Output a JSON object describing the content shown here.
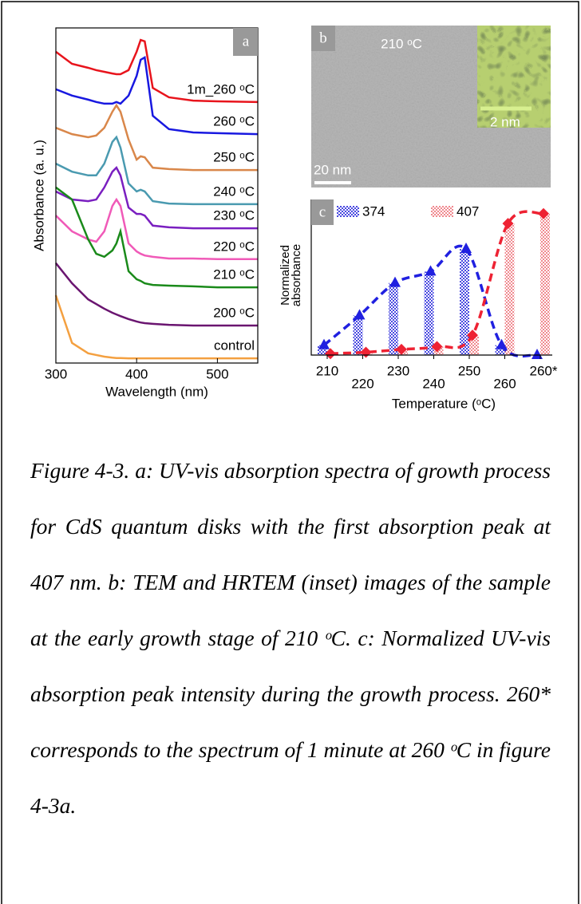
{
  "chart_data": [
    {
      "type": "line",
      "panel_label": "a",
      "xlabel": "Wavelength (nm)",
      "ylabel": "Absorbance (a. u.)",
      "x": [
        300,
        320,
        340,
        350,
        360,
        370,
        375,
        380,
        390,
        400,
        405,
        410,
        420,
        440,
        470,
        500,
        550
      ],
      "xlim": [
        300,
        550
      ],
      "xticks": [
        300,
        400,
        500
      ],
      "ylim": [
        0,
        100
      ],
      "series": [
        {
          "name": "1m_260 ᵒC",
          "color": "#e8141c",
          "values": [
            92.9,
            89.3,
            88.1,
            87.4,
            86.9,
            86.4,
            86.2,
            86.2,
            87.4,
            92.9,
            96.4,
            96,
            82.1,
            79.3,
            78.3,
            78.1,
            77.9
          ]
        },
        {
          "name": "260 ᵒC",
          "color": "#1818e0",
          "values": [
            81.7,
            79.8,
            78.6,
            77.9,
            77.4,
            77.4,
            77.9,
            77.4,
            79.8,
            85.7,
            90.5,
            91.2,
            73.8,
            69.8,
            68.8,
            68.6,
            68.3
          ]
        },
        {
          "name": "250 ᵒC",
          "color": "#d9874a",
          "values": [
            70.2,
            68.3,
            67.4,
            67.9,
            70.2,
            75,
            76.9,
            75,
            66.7,
            60.7,
            61.7,
            61.4,
            58.3,
            57.9,
            57.6,
            57.6,
            57.6
          ]
        },
        {
          "name": "240 ᵒC",
          "color": "#4a9ab0",
          "values": [
            59.5,
            57.1,
            56,
            56,
            59.5,
            66,
            67.4,
            64.3,
            53.6,
            51.2,
            51.7,
            51.2,
            48.3,
            47.6,
            47.4,
            47.4,
            47.4
          ]
        },
        {
          "name": "230 ᵒC",
          "color": "#7a1fc0",
          "values": [
            51.2,
            48.8,
            48.3,
            48.8,
            52.4,
            57.1,
            58.3,
            56,
            46.4,
            44.5,
            44.5,
            44,
            41,
            40.5,
            40.2,
            40.2,
            40.2
          ]
        },
        {
          "name": "220 ᵒC",
          "color": "#f05ab8",
          "values": [
            44,
            39.3,
            36.9,
            36.2,
            39.3,
            46.9,
            48.8,
            46.9,
            35.7,
            33.3,
            32.6,
            32.1,
            31.7,
            31.2,
            31.2,
            31,
            31
          ]
        },
        {
          "name": "210 ᵒC",
          "color": "#1a8a1a",
          "values": [
            52.4,
            48.8,
            36.9,
            32.6,
            31.7,
            33.6,
            35.7,
            39.3,
            27.4,
            25,
            24.5,
            23.8,
            23.3,
            23.1,
            22.9,
            22.6,
            22.6
          ]
        },
        {
          "name": "200 ᵒC",
          "color": "#6a1570",
          "values": [
            29.8,
            23.8,
            19,
            17.6,
            16.2,
            15,
            14.5,
            14,
            13.1,
            12.4,
            12.1,
            11.9,
            11.7,
            11.4,
            11.2,
            11.2,
            11.2
          ]
        },
        {
          "name": "control",
          "color": "#f4a040",
          "values": [
            20.2,
            6,
            2.9,
            2.4,
            1.9,
            1.6,
            1.5,
            1.5,
            1.4,
            1.4,
            1.4,
            1.4,
            1.4,
            1.4,
            1.4,
            1.4,
            1.4
          ]
        }
      ]
    },
    {
      "type": "bar_line",
      "panel_label": "c",
      "xlabel": "Temperature (ᵒC)",
      "ylabel_lines": [
        "Normalized",
        "absorbance"
      ],
      "categories": [
        "210",
        "220",
        "230",
        "240",
        "250",
        "260",
        "260*"
      ],
      "ylim": [
        0,
        1.1
      ],
      "legend": "top",
      "series": [
        {
          "name": "374",
          "color": "#2020e0",
          "values": [
            0.07,
            0.28,
            0.51,
            0.59,
            0.75,
            0.07,
            0
          ]
        },
        {
          "name": "407",
          "color": "#ee2233",
          "values": [
            0.01,
            0.02,
            0.04,
            0.06,
            0.14,
            0.93,
            1
          ]
        }
      ]
    }
  ],
  "tem_image": {
    "panel_label": "b",
    "temperature": "210 ᵒC",
    "inset_scale": "2 nm",
    "scale": "20 nm"
  },
  "caption": "Figure 4-3. a: UV-vis absorption spectra of growth process for CdS quantum disks with the first absorption peak at 407 nm. b: TEM and HRTEM (inset) images of the sample at the early growth stage of 210 ᵒC. c: Normalized UV-vis absorption peak intensity during the growth process. 260* corresponds to the spectrum of 1 minute at 260 ᵒC in figure 4-3a."
}
